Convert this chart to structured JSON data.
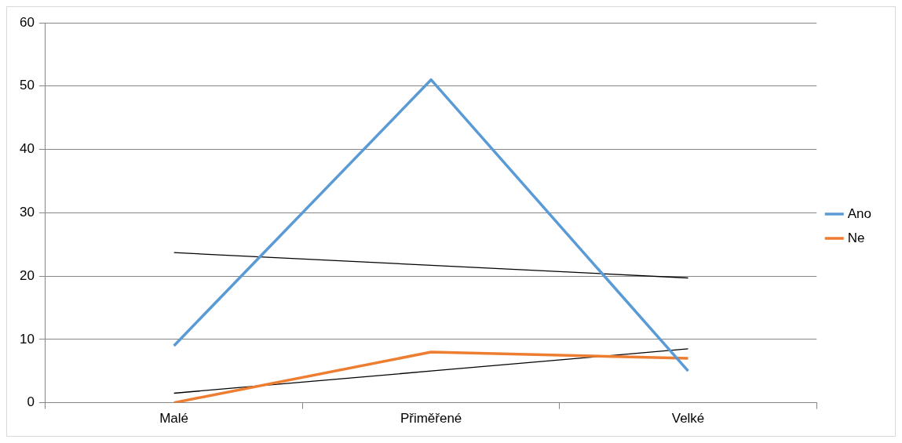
{
  "chart_data": {
    "type": "line",
    "categories": [
      "Malé",
      "Přiměřené",
      "Velké"
    ],
    "series": [
      {
        "name": "Ano",
        "color": "#5b9bd5",
        "values": [
          9,
          51,
          5
        ]
      },
      {
        "name": "Ne",
        "color": "#ed7d31",
        "values": [
          0,
          8,
          7
        ]
      },
      {
        "color": "#000000",
        "values": [
          23.7,
          21.7,
          19.7
        ]
      },
      {
        "color": "#000000",
        "values": [
          1.5,
          5,
          8.5
        ]
      }
    ],
    "ylim": [
      0,
      60
    ],
    "yticks": [
      0,
      10,
      20,
      30,
      40,
      50,
      60
    ],
    "grid": "y",
    "legend": "right",
    "marker": "none"
  }
}
